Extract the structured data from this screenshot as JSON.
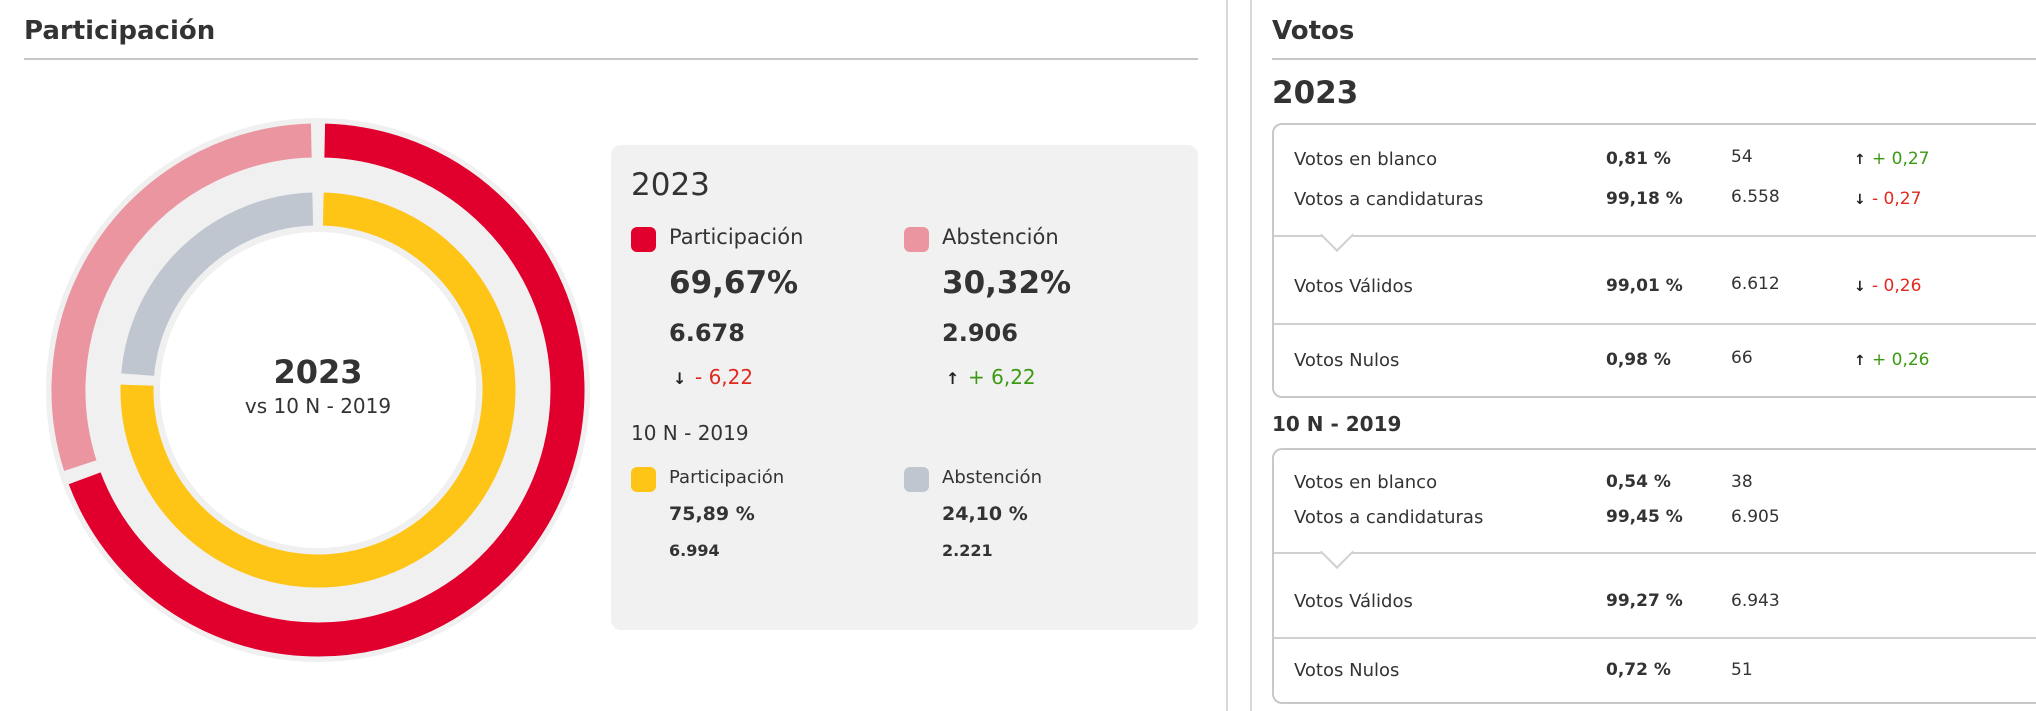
{
  "participacion": {
    "title": "Participación",
    "donut": {
      "year": "2023",
      "subtitle": "vs 10 N - 2019",
      "outer": {
        "participacion_pct": 69.67,
        "abstencion_pct": 30.32
      },
      "inner": {
        "participacion_pct": 75.89,
        "abstencion_pct": 24.1
      },
      "colors": {
        "participacion_2023": "#e1002d",
        "abstencion_2023": "#eb95a1",
        "participacion_2019": "#fec416",
        "abstencion_2019": "#c0c6d0",
        "track": "#f0f0f0"
      }
    },
    "card": {
      "year": "2023",
      "current": {
        "participacion": {
          "label": "Participación",
          "pct": "69,67%",
          "count": "6.678",
          "delta": "- 6,22",
          "arrow": "↓"
        },
        "abstencion": {
          "label": "Abstención",
          "pct": "30,32%",
          "count": "2.906",
          "delta": "+ 6,22",
          "arrow": "↑"
        }
      },
      "previous_title": "10 N - 2019",
      "previous": {
        "participacion": {
          "label": "Participación",
          "pct": "75,89 %",
          "count": "6.994"
        },
        "abstencion": {
          "label": "Abstención",
          "pct": "24,10 %",
          "count": "2.221"
        }
      }
    }
  },
  "votos": {
    "title": "Votos",
    "current": {
      "year": "2023",
      "rows": [
        {
          "label": "Votos en blanco",
          "pct": "0,81 %",
          "count": "54",
          "arrow": "↑",
          "delta": "+ 0,27",
          "sign": "pos"
        },
        {
          "label": "Votos a candidaturas",
          "pct": "99,18 %",
          "count": "6.558",
          "arrow": "↓",
          "delta": "- 0,27",
          "sign": "neg"
        },
        {
          "label": "Votos Válidos",
          "pct": "99,01 %",
          "count": "6.612",
          "arrow": "↓",
          "delta": "- 0,26",
          "sign": "neg"
        },
        {
          "label": "Votos Nulos",
          "pct": "0,98 %",
          "count": "66",
          "arrow": "↑",
          "delta": "+ 0,26",
          "sign": "pos"
        }
      ]
    },
    "previous": {
      "year": "10 N - 2019",
      "rows": [
        {
          "label": "Votos en blanco",
          "pct": "0,54 %",
          "count": "38"
        },
        {
          "label": "Votos a candidaturas",
          "pct": "99,45 %",
          "count": "6.905"
        },
        {
          "label": "Votos Válidos",
          "pct": "99,27 %",
          "count": "6.943"
        },
        {
          "label": "Votos Nulos",
          "pct": "0,72 %",
          "count": "51"
        }
      ]
    }
  }
}
